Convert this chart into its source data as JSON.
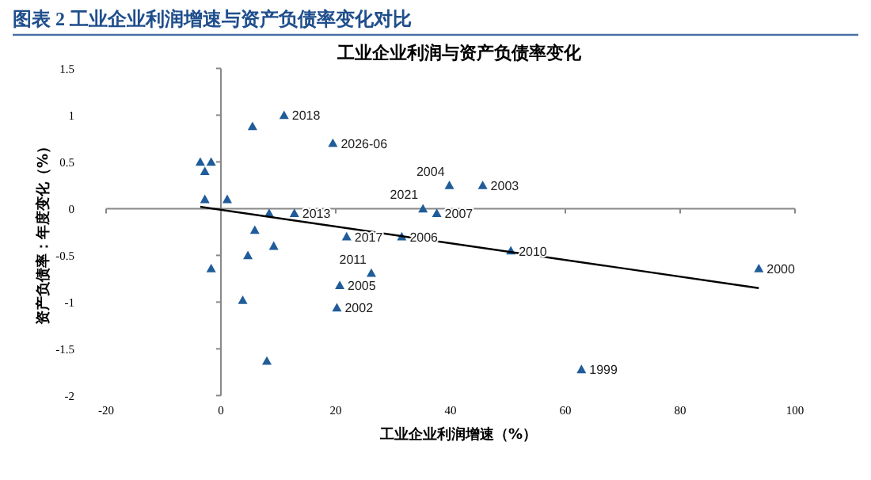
{
  "chart_data": {
    "type": "scatter",
    "title": "图表 2   工业企业利润增速与资产负债率变化对比",
    "subtitle": "工业企业利润与资产负债率变化",
    "xlabel": "工业企业利润增速（%）",
    "ylabel": "资产负债率：年度变化（%）",
    "xlim": [
      -20,
      100
    ],
    "ylim": [
      -2,
      1.5
    ],
    "xticks": [
      -20,
      0,
      20,
      40,
      60,
      80,
      100
    ],
    "yticks": [
      -2,
      -1.5,
      -1,
      -0.5,
      0,
      0.5,
      1,
      1.5
    ],
    "marker": "triangle",
    "series": [
      {
        "color": "#1f5c99",
        "x": [
          -3.6,
          -1.7,
          -2.8,
          -2.8,
          1.1,
          -1.7,
          5.5,
          11.0,
          19.5,
          8.4,
          12.8,
          5.9,
          9.2,
          4.7,
          3.8,
          8.0,
          21.9,
          31.5,
          20.7,
          20.2,
          26.2,
          35.2,
          39.8,
          45.6,
          37.6,
          50.5,
          93.7,
          62.8
        ],
        "values": [
          0.5,
          0.5,
          0.4,
          0.1,
          0.1,
          -0.64,
          0.88,
          1.0,
          0.7,
          -0.05,
          -0.05,
          -0.23,
          -0.4,
          -0.5,
          -0.98,
          -1.63,
          -0.3,
          -0.3,
          -0.82,
          -1.06,
          -0.69,
          0.0,
          0.25,
          0.25,
          -0.05,
          -0.45,
          -0.64,
          -1.72
        ]
      },
      {
        "type": "line",
        "marker": "none",
        "color": "#000000",
        "x": [
          -3.6,
          93.7
        ],
        "values": [
          0.02,
          -0.85
        ]
      }
    ],
    "annotations": [
      {
        "text": "2018",
        "x": 11.0,
        "y": 1.0
      },
      {
        "text": "2026-06",
        "x": 19.5,
        "y": 0.7
      },
      {
        "text": "2013",
        "x": 12.8,
        "y": -0.05
      },
      {
        "text": "2017",
        "x": 21.9,
        "y": -0.3
      },
      {
        "text": "2006",
        "x": 31.5,
        "y": -0.3
      },
      {
        "text": "2005",
        "x": 20.7,
        "y": -0.82
      },
      {
        "text": "2002",
        "x": 20.2,
        "y": -1.06
      },
      {
        "text": "2011",
        "x": 26.2,
        "y": -0.69
      },
      {
        "text": "2021",
        "x": 35.2,
        "y": 0.0
      },
      {
        "text": "2004",
        "x": 39.8,
        "y": 0.25
      },
      {
        "text": "2003",
        "x": 45.6,
        "y": 0.25
      },
      {
        "text": "2007",
        "x": 37.6,
        "y": -0.05
      },
      {
        "text": "2010",
        "x": 50.5,
        "y": -0.45
      },
      {
        "text": "2000",
        "x": 93.7,
        "y": -0.64
      },
      {
        "text": "1999",
        "x": 62.8,
        "y": -1.72
      }
    ]
  }
}
